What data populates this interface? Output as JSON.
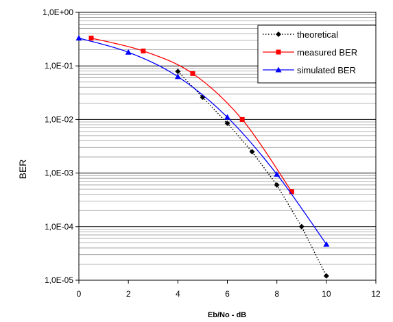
{
  "chart_data": {
    "type": "line",
    "title": "",
    "xlabel": "Eb/No - dB",
    "ylabel": "BER",
    "x_scale": "linear",
    "y_scale": "log",
    "xlim": [
      0,
      12
    ],
    "ylim": [
      1e-05,
      1
    ],
    "x_ticks": [
      "0",
      "2",
      "4",
      "6",
      "8",
      "10",
      "12"
    ],
    "y_ticks": [
      "1,0E+00",
      "1,0E-01",
      "1,0E-02",
      "1,0E-03",
      "1,0E-04",
      "1,0E-05"
    ],
    "grid": true,
    "legend_position": "top-right",
    "series": [
      {
        "name": "theoretical",
        "color": "#000000",
        "line_style": "dotted",
        "marker": "diamond",
        "x": [
          4,
          5,
          6,
          7,
          8,
          9,
          10
        ],
        "y": [
          0.079,
          0.026,
          0.0085,
          0.0025,
          0.0006,
          0.0001,
          1.2e-05
        ]
      },
      {
        "name": "measured BER",
        "color": "#ff0000",
        "line_style": "solid",
        "marker": "square",
        "x": [
          0.5,
          2.6,
          4.6,
          6.6,
          8.6
        ],
        "y": [
          0.33,
          0.19,
          0.072,
          0.01,
          0.00045
        ]
      },
      {
        "name": "simulated BER",
        "color": "#0000ff",
        "line_style": "solid",
        "marker": "triangle",
        "x": [
          0,
          2,
          4,
          6,
          8,
          10
        ],
        "y": [
          0.33,
          0.18,
          0.063,
          0.011,
          0.00095,
          4.7e-05
        ]
      }
    ]
  }
}
